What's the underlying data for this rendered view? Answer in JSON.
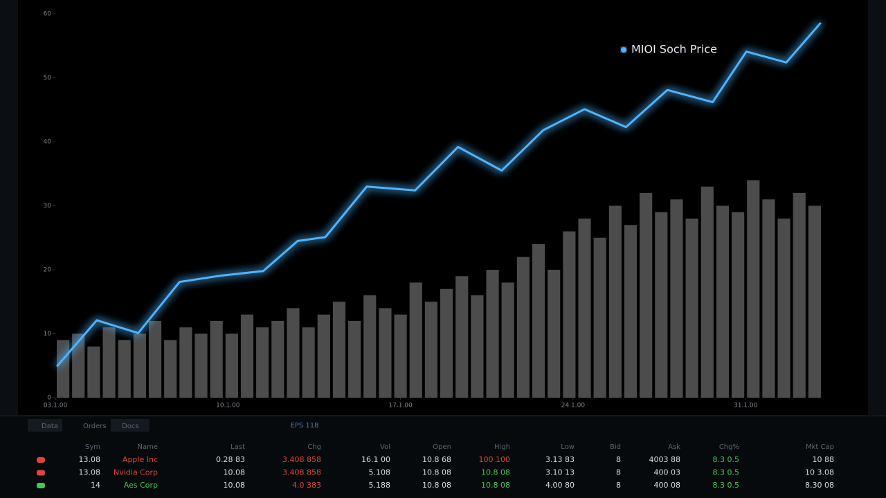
{
  "chart_data": {
    "type": "line",
    "legend": "top-right",
    "x": [
      0.2,
      5.4,
      10.8,
      16.2,
      21.7,
      27.1,
      31.6,
      35.2,
      40.6,
      46.9,
      52.5,
      58.2,
      63.6,
      69.0,
      74.4,
      79.8,
      85.7,
      90.1,
      95.3,
      99.8
    ],
    "series": [
      {
        "name": "MIOI Soch Price",
        "color": "#4fb4ff",
        "values": [
          4.9,
          12.1,
          10.1,
          18.1,
          19.1,
          19.8,
          24.5,
          25.1,
          33.0,
          32.4,
          39.2,
          35.5,
          41.8,
          45.1,
          42.3,
          48.1,
          46.2,
          54.1,
          52.4,
          58.6
        ]
      }
    ],
    "volume": {
      "color": "#8a8a8a",
      "values": [
        9,
        10,
        8,
        11,
        9,
        10,
        12,
        9,
        11,
        10,
        12,
        10,
        13,
        11,
        12,
        14,
        11,
        13,
        15,
        12,
        16,
        14,
        13,
        18,
        15,
        17,
        19,
        16,
        20,
        18,
        22,
        24,
        20,
        26,
        28,
        25,
        30,
        27,
        32,
        29,
        31,
        28,
        33,
        30,
        29,
        34,
        31,
        28,
        32,
        30
      ]
    },
    "xlim": [
      0,
      100
    ],
    "ylim": [
      0,
      60
    ],
    "xticks": [
      {
        "value": 0,
        "label": "03.1.00"
      },
      {
        "value": 22.5,
        "label": "10.1.00"
      },
      {
        "value": 45,
        "label": "17.1.00"
      },
      {
        "value": 67.5,
        "label": "24.1.00"
      },
      {
        "value": 90,
        "label": "31.1.00"
      }
    ],
    "yticks": [
      0,
      10,
      20,
      30,
      40,
      50,
      60
    ],
    "grid": false
  },
  "tabs": [
    "Data",
    "Orders",
    "Docs"
  ],
  "panel_title": "EPS 118",
  "table": {
    "header": [
      "Sym",
      "Name",
      "Last",
      "Chg",
      "Vol",
      "Open",
      "High",
      "Low",
      "Bid",
      "Ask",
      "Chg%",
      "Mkt Cap"
    ],
    "rows": [
      [
        "13.08",
        "Apple Inc",
        "0.28 83",
        "3.408 858",
        "16.1 00",
        "10.8 68",
        "100 100",
        "3.13 83",
        "8",
        "4003 88",
        "8.3 0.5",
        "10 88"
      ],
      [
        "13.08",
        "Nvidia Corp",
        "10.08",
        "3.408 858",
        "5.108",
        "10.8 08",
        "10.8 08",
        "3.10 13",
        "8",
        "400 03",
        "8.3 0.5",
        "10 3.08"
      ],
      [
        "14",
        "Aes Corp",
        "10.08",
        "4.0 383",
        "5.188",
        "10.8 08",
        "10.8 08",
        "4.00 80",
        "8",
        "400 08",
        "8.3 0.5",
        "8.30 08"
      ]
    ]
  }
}
